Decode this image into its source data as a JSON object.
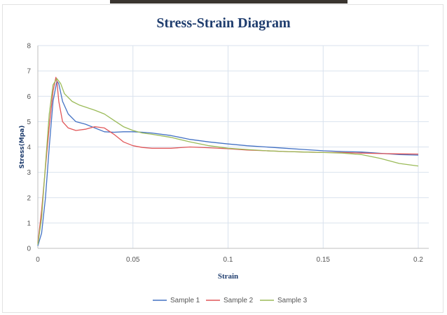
{
  "chart_data": {
    "type": "line",
    "title": "Stress-Strain Diagram",
    "xlabel": "Strain",
    "ylabel": "Stress(Mpa)",
    "xlim": [
      0,
      0.2
    ],
    "ylim": [
      0,
      8
    ],
    "x_ticks": [
      0,
      0.05,
      0.1,
      0.15,
      0.2
    ],
    "x_tick_labels": [
      "0",
      "0.05",
      "0.1",
      "0.15",
      "0.2"
    ],
    "y_ticks": [
      0,
      1,
      2,
      3,
      4,
      5,
      6,
      7,
      8
    ],
    "y_tick_labels": [
      "0",
      "1",
      "2",
      "3",
      "4",
      "5",
      "6",
      "7",
      "8"
    ],
    "grid": true,
    "legend_position": "bottom",
    "series": [
      {
        "name": "Sample 1",
        "color": "#4472c4",
        "x": [
          0,
          0.002,
          0.004,
          0.006,
          0.008,
          0.01,
          0.011,
          0.013,
          0.016,
          0.02,
          0.025,
          0.03,
          0.035,
          0.04,
          0.045,
          0.05,
          0.055,
          0.06,
          0.07,
          0.08,
          0.09,
          0.1,
          0.11,
          0.12,
          0.13,
          0.14,
          0.15,
          0.16,
          0.17,
          0.18,
          0.19,
          0.2
        ],
        "values": [
          0.1,
          0.6,
          2.0,
          4.0,
          5.8,
          6.6,
          6.5,
          5.8,
          5.3,
          5.0,
          4.9,
          4.75,
          4.6,
          4.58,
          4.6,
          4.6,
          4.58,
          4.55,
          4.45,
          4.3,
          4.2,
          4.12,
          4.05,
          4.0,
          3.95,
          3.9,
          3.85,
          3.82,
          3.8,
          3.75,
          3.7,
          3.68
        ]
      },
      {
        "name": "Sample 2",
        "color": "#e15759",
        "x": [
          0,
          0.002,
          0.004,
          0.006,
          0.008,
          0.0095,
          0.01,
          0.011,
          0.013,
          0.016,
          0.02,
          0.025,
          0.03,
          0.035,
          0.04,
          0.045,
          0.05,
          0.055,
          0.06,
          0.07,
          0.08,
          0.09,
          0.1,
          0.11,
          0.12,
          0.13,
          0.14,
          0.15,
          0.16,
          0.17,
          0.18,
          0.19,
          0.2
        ],
        "values": [
          0.2,
          1.5,
          3.2,
          4.8,
          6.2,
          6.75,
          6.6,
          5.8,
          5.0,
          4.75,
          4.65,
          4.7,
          4.8,
          4.75,
          4.5,
          4.2,
          4.05,
          3.98,
          3.95,
          3.95,
          4.0,
          3.97,
          3.93,
          3.88,
          3.85,
          3.82,
          3.8,
          3.78,
          3.78,
          3.76,
          3.74,
          3.73,
          3.72
        ]
      },
      {
        "name": "Sample 3",
        "color": "#9bbb59",
        "x": [
          0,
          0.002,
          0.004,
          0.006,
          0.008,
          0.01,
          0.012,
          0.014,
          0.018,
          0.022,
          0.026,
          0.03,
          0.035,
          0.04,
          0.045,
          0.05,
          0.055,
          0.06,
          0.07,
          0.08,
          0.09,
          0.1,
          0.11,
          0.12,
          0.13,
          0.14,
          0.15,
          0.16,
          0.17,
          0.18,
          0.19,
          0.2
        ],
        "values": [
          0.15,
          1.2,
          3.3,
          5.3,
          6.45,
          6.7,
          6.5,
          6.1,
          5.8,
          5.65,
          5.55,
          5.45,
          5.3,
          5.05,
          4.8,
          4.65,
          4.55,
          4.5,
          4.38,
          4.2,
          4.05,
          3.95,
          3.9,
          3.85,
          3.82,
          3.8,
          3.78,
          3.76,
          3.7,
          3.55,
          3.35,
          3.25
        ]
      }
    ]
  }
}
